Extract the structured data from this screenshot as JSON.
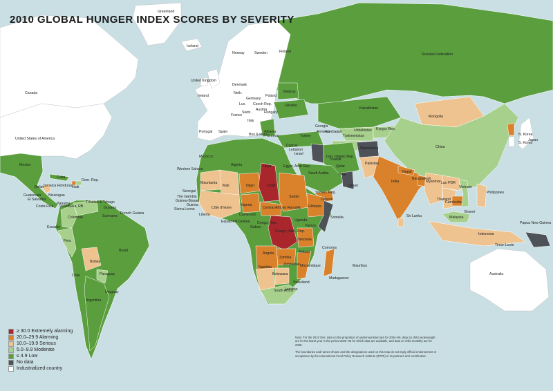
{
  "title": "2010 GLOBAL HUNGER INDEX SCORES BY SEVERITY",
  "legend": [
    {
      "label": "≥ 30.0 Extremely alarming",
      "color": "#a8262c"
    },
    {
      "label": "20.0–29.9 Alarming",
      "color": "#d9822b"
    },
    {
      "label": "10.0–19.9 Serious",
      "color": "#efc38f"
    },
    {
      "label": "5.0–9.9 Moderate",
      "color": "#a8d08d"
    },
    {
      "label": "≤ 4.9 Low",
      "color": "#5a9e3e"
    },
    {
      "label": "No data",
      "color": "#4d5258"
    },
    {
      "label": "Industrialized country",
      "color": "#ffffff"
    }
  ],
  "colors": {
    "ocean": "#c9dfe4",
    "industrialized": "#ffffff",
    "low": "#5a9e3e",
    "moderate": "#a8d08d",
    "serious": "#efc38f",
    "alarming": "#d9822b",
    "extremely_alarming": "#a8262c",
    "no_data": "#4d5258"
  },
  "note": {
    "p1": "Note: For the 2010 GHI, data on the proportion of undernourished are for 2004–06, data on child underweight are for the latest year in the period 2003–08 for which data are available, and data on child mortality are for 2008.",
    "p2": "The boundaries and names shown and the designations used on this map do not imply official endorsement or acceptance by the International Food Policy Research Institute (IFPRI) or its partners and contributors."
  },
  "labels": {
    "greenland": "Greenland",
    "iceland": "Iceland",
    "canada": "Canada",
    "usa": "United States of America",
    "mexico": "Mexico",
    "cuba": "Cuba",
    "jamaica_honduras": "Jamaica Honduras",
    "haiti": "Haiti",
    "dom_rep": "Dom. Rep.",
    "belize": "Belize",
    "guatemala": "Guatemala",
    "el_salvador": "El Salvador",
    "nicaragua": "Nicaragua",
    "costa_rica": "Costa Rica",
    "panama": "Panama",
    "trinidad": "Trinidad & Tobago",
    "venezuela": "Venezuela, RB",
    "guyana": "Guyana",
    "suriname": "Suriname",
    "french_guiana": "French Guiana",
    "colombia": "Colombia",
    "ecuador": "Ecuador",
    "peru": "Peru",
    "bolivia": "Bolivia",
    "brazil": "Brazil",
    "paraguay": "Paraguay",
    "chile": "Chile",
    "argentina": "Argentina",
    "uruguay": "Uruguay",
    "norway": "Norway",
    "sweden": "Sweden",
    "finland": "Finland",
    "uk": "United Kingdom",
    "ireland": "Ireland",
    "denmark": "Denmark",
    "neth": "Neth.",
    "germany": "Germany",
    "lux": "Lux.",
    "czech": "Czech Rep.",
    "poland": "Poland",
    "austria": "Austria",
    "hungary": "Hungary",
    "france": "France",
    "switz": "Switz.",
    "italy": "Italy",
    "portugal": "Portugal",
    "spain": "Spain",
    "bos_herz": "Bos & Herz.",
    "albania": "Albania",
    "greece": "Greece",
    "cyprus": "Cyprus",
    "lebanon": "Lebanon",
    "israel": "Israel",
    "belarus": "Belarus",
    "ukraine": "Ukraine",
    "russia": "Russian Federation",
    "kazakhstan": "Kazakhstan",
    "mongolia": "Mongolia",
    "china": "China",
    "n_korea": "N. Korea",
    "s_korea": "S. Korea",
    "japan": "Japan",
    "uzbekistan": "Uzbekistan",
    "kyrgyz": "Kyrgyz Rep.",
    "turkmenistan": "Turkmenistan",
    "georgia": "Georgia",
    "armenia": "Armenia",
    "azerbaijan": "Azerbaijan",
    "turkey": "Turkey",
    "iran": "Iran, Islamic Rep.",
    "afghanistan": "Afghanistan",
    "pakistan": "Pakistan",
    "india": "India",
    "nepal": "Nepal",
    "bangladesh": "Bangladesh",
    "myanmar": "Myanmar",
    "lao": "Lao PDR",
    "thailand": "Thailand",
    "cambodia": "Cambodia",
    "vietnam": "Vietnam",
    "philippines": "Philippines",
    "malaysia": "Malaysia",
    "brunei": "Brunei",
    "indonesia": "Indonesia",
    "sri_lanka": "Sri Lanka",
    "png": "Papua New Guinea",
    "timor": "Timor-Leste",
    "australia": "Australia",
    "saudi": "Saudi Arabia",
    "egypt": "Egypt, Arab Rep.",
    "kuwait": "Kuwait",
    "qatar": "Qatar",
    "uae": "UAE",
    "oman": "Oman",
    "yemen": "Yemen, Rep.",
    "morocco": "Morocco",
    "algeria": "Algeria",
    "libya": "Libya",
    "western_sahara": "Western Sahara",
    "mauritania": "Mauritania",
    "mali": "Mali",
    "niger": "Niger",
    "chad": "Chad",
    "sudan": "Sudan",
    "senegal": "Senegal",
    "gambia": "The Gambia",
    "guinea_bissau": "Guinea-Bissau",
    "guinea": "Guinea",
    "sierra_leone": "Sierra Leone",
    "liberia": "Liberia",
    "cote": "Côte d'Ivoire",
    "nigeria": "Nigeria",
    "cameroon": "Cameroon",
    "eq_guinea": "Equatorial Guinea",
    "car": "Central African Republic",
    "ethiopia": "Ethiopia",
    "djibouti": "Djibouti",
    "somalia": "Somalia",
    "uganda": "Uganda",
    "kenya": "Kenya",
    "congo": "Congo, Rep.",
    "gabon": "Gabon",
    "drc": "Congo, Dem. Rep.",
    "tanzania": "Tanzania",
    "angola": "Angola",
    "zambia": "Zambia",
    "malawi": "Malawi",
    "mozambique": "Mozambique",
    "zimbabwe": "Zimbabwe",
    "namibia": "Namibia",
    "botswana": "Botswana",
    "south_africa": "South Africa",
    "swaziland": "Swaziland",
    "lesotho": "Lesotho",
    "madagascar": "Madagascar",
    "comoros": "Comoros",
    "mauritius": "Mauritius"
  }
}
